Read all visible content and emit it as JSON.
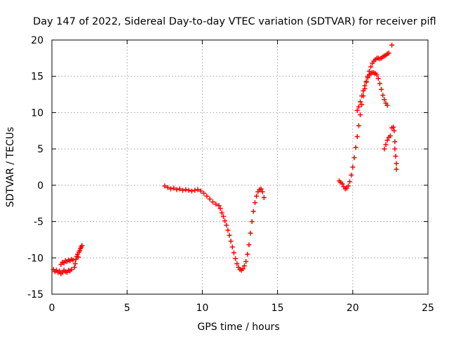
{
  "chart_data": {
    "type": "scatter",
    "title": "Day 147 of 2022, Sidereal Day-to-day VTEC variation (SDTVAR) for receiver pifl",
    "xlabel": "GPS time / hours",
    "ylabel": "SDTVAR / TECUs",
    "xlim": [
      0,
      25
    ],
    "ylim": [
      -15,
      20
    ],
    "xticks": [
      "0",
      "5",
      "10",
      "15",
      "20",
      "25"
    ],
    "yticks": [
      "-15",
      "-10",
      "-5",
      "0",
      "5",
      "10",
      "15",
      "20"
    ],
    "grid": true,
    "marker": "+",
    "color": "#ff0000",
    "series": [
      {
        "points": [
          [
            0.1,
            -11.6
          ],
          [
            0.2,
            -11.9
          ],
          [
            0.3,
            -11.7
          ],
          [
            0.4,
            -12.0
          ],
          [
            0.5,
            -11.8
          ],
          [
            0.6,
            -12.2
          ],
          [
            0.7,
            -12.0
          ],
          [
            0.8,
            -11.7
          ],
          [
            0.9,
            -11.9
          ],
          [
            1.0,
            -12.0
          ],
          [
            1.1,
            -11.7
          ],
          [
            1.2,
            -11.8
          ],
          [
            1.3,
            -11.6
          ],
          [
            0.6,
            -10.9
          ],
          [
            0.7,
            -10.6
          ],
          [
            0.8,
            -10.7
          ],
          [
            0.9,
            -10.4
          ],
          [
            1.0,
            -10.5
          ],
          [
            1.1,
            -10.3
          ],
          [
            1.2,
            -10.4
          ],
          [
            1.3,
            -10.2
          ],
          [
            1.4,
            -10.3
          ],
          [
            1.5,
            -11.3
          ],
          [
            1.55,
            -10.8
          ],
          [
            1.6,
            -10.2
          ],
          [
            1.65,
            -9.8
          ],
          [
            1.7,
            -9.5
          ],
          [
            1.75,
            -9.9
          ],
          [
            1.8,
            -9.2
          ],
          [
            1.85,
            -9.0
          ],
          [
            1.9,
            -8.7
          ],
          [
            1.95,
            -8.5
          ],
          [
            2.0,
            -8.3
          ]
        ]
      },
      {
        "points": [
          [
            7.5,
            -0.1
          ],
          [
            7.7,
            -0.3
          ],
          [
            7.9,
            -0.5
          ],
          [
            8.1,
            -0.4
          ],
          [
            8.3,
            -0.6
          ],
          [
            8.5,
            -0.5
          ],
          [
            8.7,
            -0.7
          ],
          [
            8.9,
            -0.6
          ],
          [
            9.1,
            -0.7
          ],
          [
            9.3,
            -0.8
          ],
          [
            9.5,
            -0.7
          ],
          [
            9.7,
            -0.6
          ],
          [
            9.9,
            -0.8
          ],
          [
            10.1,
            -1.1
          ],
          [
            10.3,
            -1.5
          ],
          [
            10.5,
            -1.9
          ],
          [
            10.7,
            -2.3
          ],
          [
            10.9,
            -2.6
          ],
          [
            11.1,
            -2.8
          ],
          [
            11.2,
            -3.2
          ],
          [
            11.3,
            -3.8
          ],
          [
            11.4,
            -4.3
          ],
          [
            11.5,
            -4.9
          ],
          [
            11.6,
            -5.5
          ],
          [
            11.7,
            -6.2
          ],
          [
            11.8,
            -6.9
          ],
          [
            11.9,
            -7.7
          ],
          [
            12.0,
            -8.5
          ],
          [
            12.1,
            -9.3
          ],
          [
            12.2,
            -10.1
          ],
          [
            12.3,
            -10.8
          ],
          [
            12.4,
            -11.3
          ],
          [
            12.5,
            -11.6
          ],
          [
            12.6,
            -11.7
          ],
          [
            12.7,
            -11.5
          ],
          [
            12.8,
            -11.1
          ],
          [
            12.9,
            -10.5
          ],
          [
            13.0,
            -9.5
          ],
          [
            13.1,
            -8.2
          ],
          [
            13.2,
            -6.6
          ],
          [
            13.3,
            -5.0
          ],
          [
            13.4,
            -3.6
          ],
          [
            13.5,
            -2.4
          ],
          [
            13.6,
            -1.5
          ],
          [
            13.7,
            -0.9
          ],
          [
            13.8,
            -0.6
          ],
          [
            13.9,
            -0.5
          ],
          [
            14.0,
            -0.9
          ],
          [
            14.1,
            -1.7
          ]
        ]
      },
      {
        "points": [
          [
            19.1,
            0.6
          ],
          [
            19.2,
            0.4
          ],
          [
            19.3,
            0.2
          ],
          [
            19.4,
            -0.2
          ],
          [
            19.5,
            -0.5
          ],
          [
            19.6,
            -0.4
          ],
          [
            19.7,
            -0.1
          ],
          [
            19.8,
            0.5
          ],
          [
            19.9,
            1.4
          ],
          [
            20.0,
            2.5
          ],
          [
            20.1,
            3.8
          ],
          [
            20.2,
            5.2
          ],
          [
            20.3,
            6.7
          ],
          [
            20.4,
            8.2
          ],
          [
            20.5,
            9.7
          ],
          [
            20.6,
            11.1
          ],
          [
            20.7,
            12.3
          ],
          [
            20.8,
            13.3
          ],
          [
            20.9,
            14.2
          ],
          [
            21.0,
            15.0
          ],
          [
            21.1,
            15.7
          ],
          [
            21.2,
            16.3
          ],
          [
            21.3,
            16.8
          ],
          [
            21.4,
            17.1
          ],
          [
            21.5,
            17.3
          ],
          [
            21.6,
            17.5
          ],
          [
            21.7,
            17.5
          ],
          [
            21.8,
            17.4
          ],
          [
            21.9,
            17.5
          ],
          [
            22.0,
            17.7
          ],
          [
            22.1,
            17.8
          ],
          [
            22.2,
            17.9
          ],
          [
            22.3,
            18.1
          ],
          [
            22.4,
            18.2
          ],
          [
            20.3,
            10.3
          ],
          [
            20.4,
            10.8
          ],
          [
            20.5,
            11.5
          ],
          [
            20.6,
            12.3
          ],
          [
            20.7,
            13.0
          ],
          [
            20.8,
            13.7
          ],
          [
            20.9,
            14.3
          ],
          [
            21.0,
            14.8
          ],
          [
            21.1,
            15.2
          ],
          [
            21.2,
            15.4
          ],
          [
            21.3,
            15.5
          ],
          [
            21.4,
            15.5
          ],
          [
            21.5,
            15.4
          ],
          [
            21.6,
            15.2
          ],
          [
            21.7,
            14.7
          ],
          [
            21.8,
            14.0
          ],
          [
            21.9,
            13.2
          ],
          [
            22.0,
            12.4
          ],
          [
            22.1,
            11.8
          ],
          [
            22.2,
            11.3
          ],
          [
            22.3,
            11.0
          ],
          [
            22.1,
            5.0
          ],
          [
            22.2,
            5.6
          ],
          [
            22.3,
            6.2
          ],
          [
            22.4,
            6.6
          ],
          [
            22.5,
            6.8
          ],
          [
            22.6,
            7.9
          ],
          [
            22.7,
            8.0
          ],
          [
            22.75,
            7.5
          ],
          [
            22.8,
            6.0
          ],
          [
            22.8,
            5.0
          ],
          [
            22.85,
            4.0
          ],
          [
            22.9,
            3.0
          ],
          [
            22.9,
            2.2
          ],
          [
            22.6,
            19.3
          ]
        ]
      }
    ]
  }
}
